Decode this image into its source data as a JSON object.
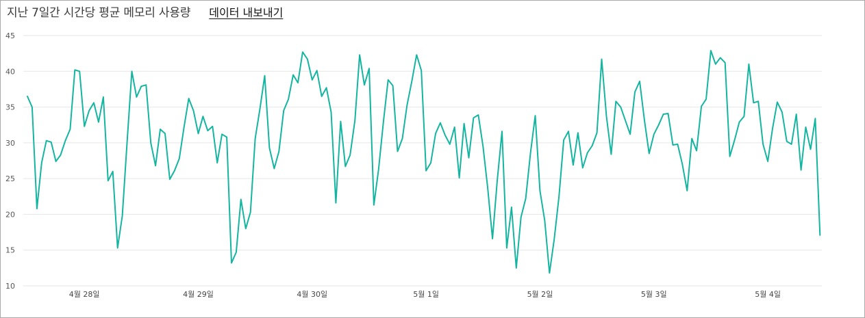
{
  "header": {
    "title": "지난 7일간 시간당 평균 메모리 사용량",
    "export_label": "데이터 내보내기"
  },
  "colors": {
    "line": "#14b5a0",
    "gridline": "#e6e6e6",
    "frame": "#a8a8a8"
  },
  "chart_data": {
    "type": "line",
    "title": "지난 7일간 시간당 평균 메모리 사용량",
    "xlabel": "",
    "ylabel": "",
    "ylim": [
      10,
      45
    ],
    "yticks": [
      10,
      15,
      20,
      25,
      30,
      35,
      40,
      45
    ],
    "xticks": [
      {
        "at": 12,
        "label": "4월 28일"
      },
      {
        "at": 36,
        "label": "4월 29일"
      },
      {
        "at": 60,
        "label": "4월 30일"
      },
      {
        "at": 84,
        "label": "5월 1일"
      },
      {
        "at": 108,
        "label": "5월 2일"
      },
      {
        "at": 132,
        "label": "5월 3일"
      },
      {
        "at": 156,
        "label": "5월 4일"
      }
    ],
    "x_unit": "hours",
    "grid": true,
    "series": [
      {
        "values": [
          36.5,
          35.0,
          20.8,
          27.2,
          30.3,
          30.1,
          27.4,
          28.3,
          30.3,
          31.9,
          40.2,
          40.0,
          32.3,
          34.5,
          35.6,
          32.9,
          36.4,
          24.7,
          26.0,
          15.3,
          19.8,
          30.0,
          40.0,
          36.4,
          37.9,
          38.1,
          30.0,
          26.8,
          31.9,
          31.3,
          24.9,
          26.1,
          27.8,
          32.2,
          36.2,
          34.5,
          31.3,
          33.7,
          31.7,
          32.3,
          27.2,
          31.2,
          30.8,
          13.2,
          14.7,
          22.1,
          18.0,
          20.3,
          30.6,
          34.8,
          39.4,
          29.3,
          26.4,
          28.8,
          34.5,
          36.1,
          39.5,
          38.4,
          42.7,
          41.7,
          38.8,
          40.1,
          36.5,
          37.7,
          34.3,
          21.6,
          33.0,
          26.7,
          28.3,
          33.1,
          42.3,
          38.1,
          40.4,
          21.3,
          26.3,
          32.9,
          38.8,
          38.0,
          28.8,
          30.6,
          35.3,
          38.6,
          42.3,
          40.1,
          26.1,
          27.2,
          31.3,
          32.8,
          31.1,
          29.8,
          32.2,
          25.1,
          32.7,
          27.9,
          33.5,
          33.9,
          29.5,
          23.6,
          16.6,
          24.8,
          31.6,
          15.3,
          21.0,
          12.5,
          19.6,
          22.2,
          28.6,
          33.8,
          23.3,
          19.1,
          11.8,
          16.5,
          22.5,
          30.4,
          31.6,
          26.9,
          31.4,
          26.5,
          28.6,
          29.6,
          31.4,
          41.7,
          33.7,
          28.4,
          35.8,
          35.0,
          33.1,
          31.2,
          37.1,
          38.6,
          33.2,
          28.5,
          31.2,
          32.5,
          34.0,
          34.1,
          29.7,
          29.8,
          27.0,
          23.3,
          30.6,
          28.9,
          35.1,
          36.1,
          42.9,
          41.0,
          41.9,
          41.2,
          28.1,
          30.4,
          32.9,
          33.7,
          41.0,
          35.6,
          35.8,
          29.8,
          27.4,
          32.0,
          35.7,
          34.3,
          30.2,
          29.8,
          34.0,
          26.2,
          32.2,
          29.1,
          33.4,
          17.1
        ]
      }
    ]
  }
}
